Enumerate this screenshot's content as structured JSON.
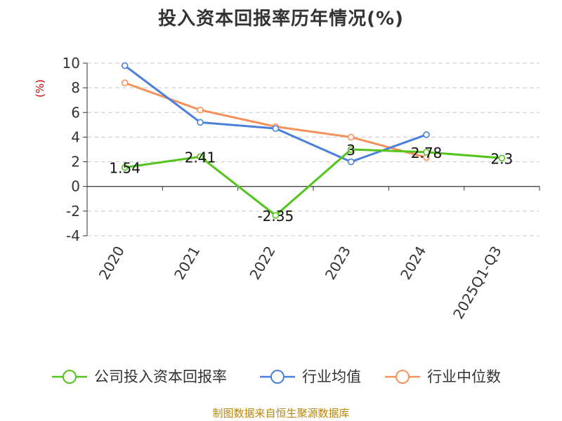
{
  "title": "投入资本回报率历年情况(%)",
  "source": "制图数据来自恒生聚源数据库",
  "colors": {
    "company": "#52c41a",
    "avg": "#4a7fdc",
    "median": "#f5915a",
    "grid": "#c8c8c8",
    "axis": "#333333",
    "unit": "#cc0000"
  },
  "chart_data": {
    "type": "line",
    "title": "投入资本回报率历年情况(%)",
    "ylabel": "(%)",
    "xlabel": "",
    "ylim": [
      -4,
      10
    ],
    "yticks": [
      -4,
      -2,
      0,
      2,
      4,
      6,
      8,
      10
    ],
    "grid": true,
    "legend_position": "bottom",
    "categories": [
      "2020",
      "2021",
      "2022",
      "2023",
      "2024",
      "2025Q1-Q3"
    ],
    "series": [
      {
        "name": "公司投入资本回报率",
        "color": "#52c41a",
        "values": [
          1.54,
          2.41,
          -2.35,
          3,
          2.78,
          2.3
        ],
        "labels": [
          "1.54",
          "2.41",
          "-2.35",
          "3",
          "2.78",
          "2.3"
        ]
      },
      {
        "name": "行业均值",
        "color": "#4a7fdc",
        "values": [
          9.8,
          5.2,
          4.7,
          2.0,
          4.2,
          null
        ]
      },
      {
        "name": "行业中位数",
        "color": "#f5915a",
        "values": [
          8.4,
          6.2,
          4.85,
          4.0,
          2.35,
          null
        ]
      }
    ]
  }
}
